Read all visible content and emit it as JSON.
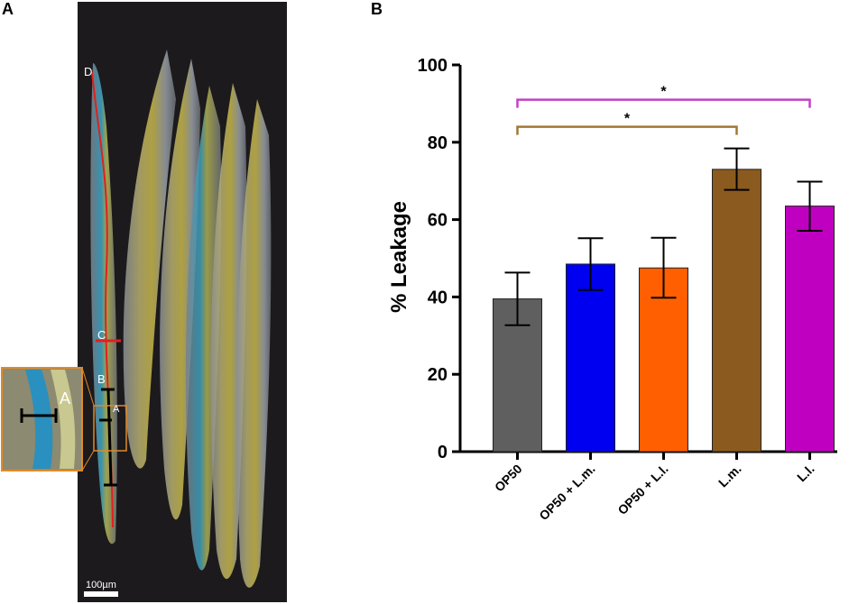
{
  "panels": {
    "a_label": "A",
    "b_label": "B"
  },
  "micrograph": {
    "point_labels": [
      "D",
      "C",
      "B",
      "A"
    ],
    "inset_label": "A",
    "scale_bar": "100µm"
  },
  "chart_data": {
    "type": "bar",
    "title": "",
    "xlabel": "",
    "ylabel": "% Leakage",
    "ylim": [
      0,
      100
    ],
    "yticks": [
      0,
      20,
      40,
      60,
      80,
      100
    ],
    "categories": [
      "OP50",
      "OP50 + L.m.",
      "OP50 + L.l.",
      "L.m.",
      "L.l."
    ],
    "values": [
      39.5,
      48.5,
      47.5,
      73,
      63.5
    ],
    "errors_low": [
      32.7,
      41.8,
      39.8,
      67.7,
      57.1
    ],
    "errors_high": [
      46.3,
      55.2,
      55.3,
      78.4,
      69.8
    ],
    "colors": [
      "#5f5f5f",
      "#0000f0",
      "#ff5f00",
      "#8b5a1e",
      "#c000c0"
    ],
    "significance": [
      {
        "from": "OP50",
        "to": "L.m.",
        "label": "*",
        "color": "#a07830",
        "level": 84
      },
      {
        "from": "OP50",
        "to": "L.l.",
        "label": "*",
        "color": "#c040c8",
        "level": 91
      }
    ]
  }
}
